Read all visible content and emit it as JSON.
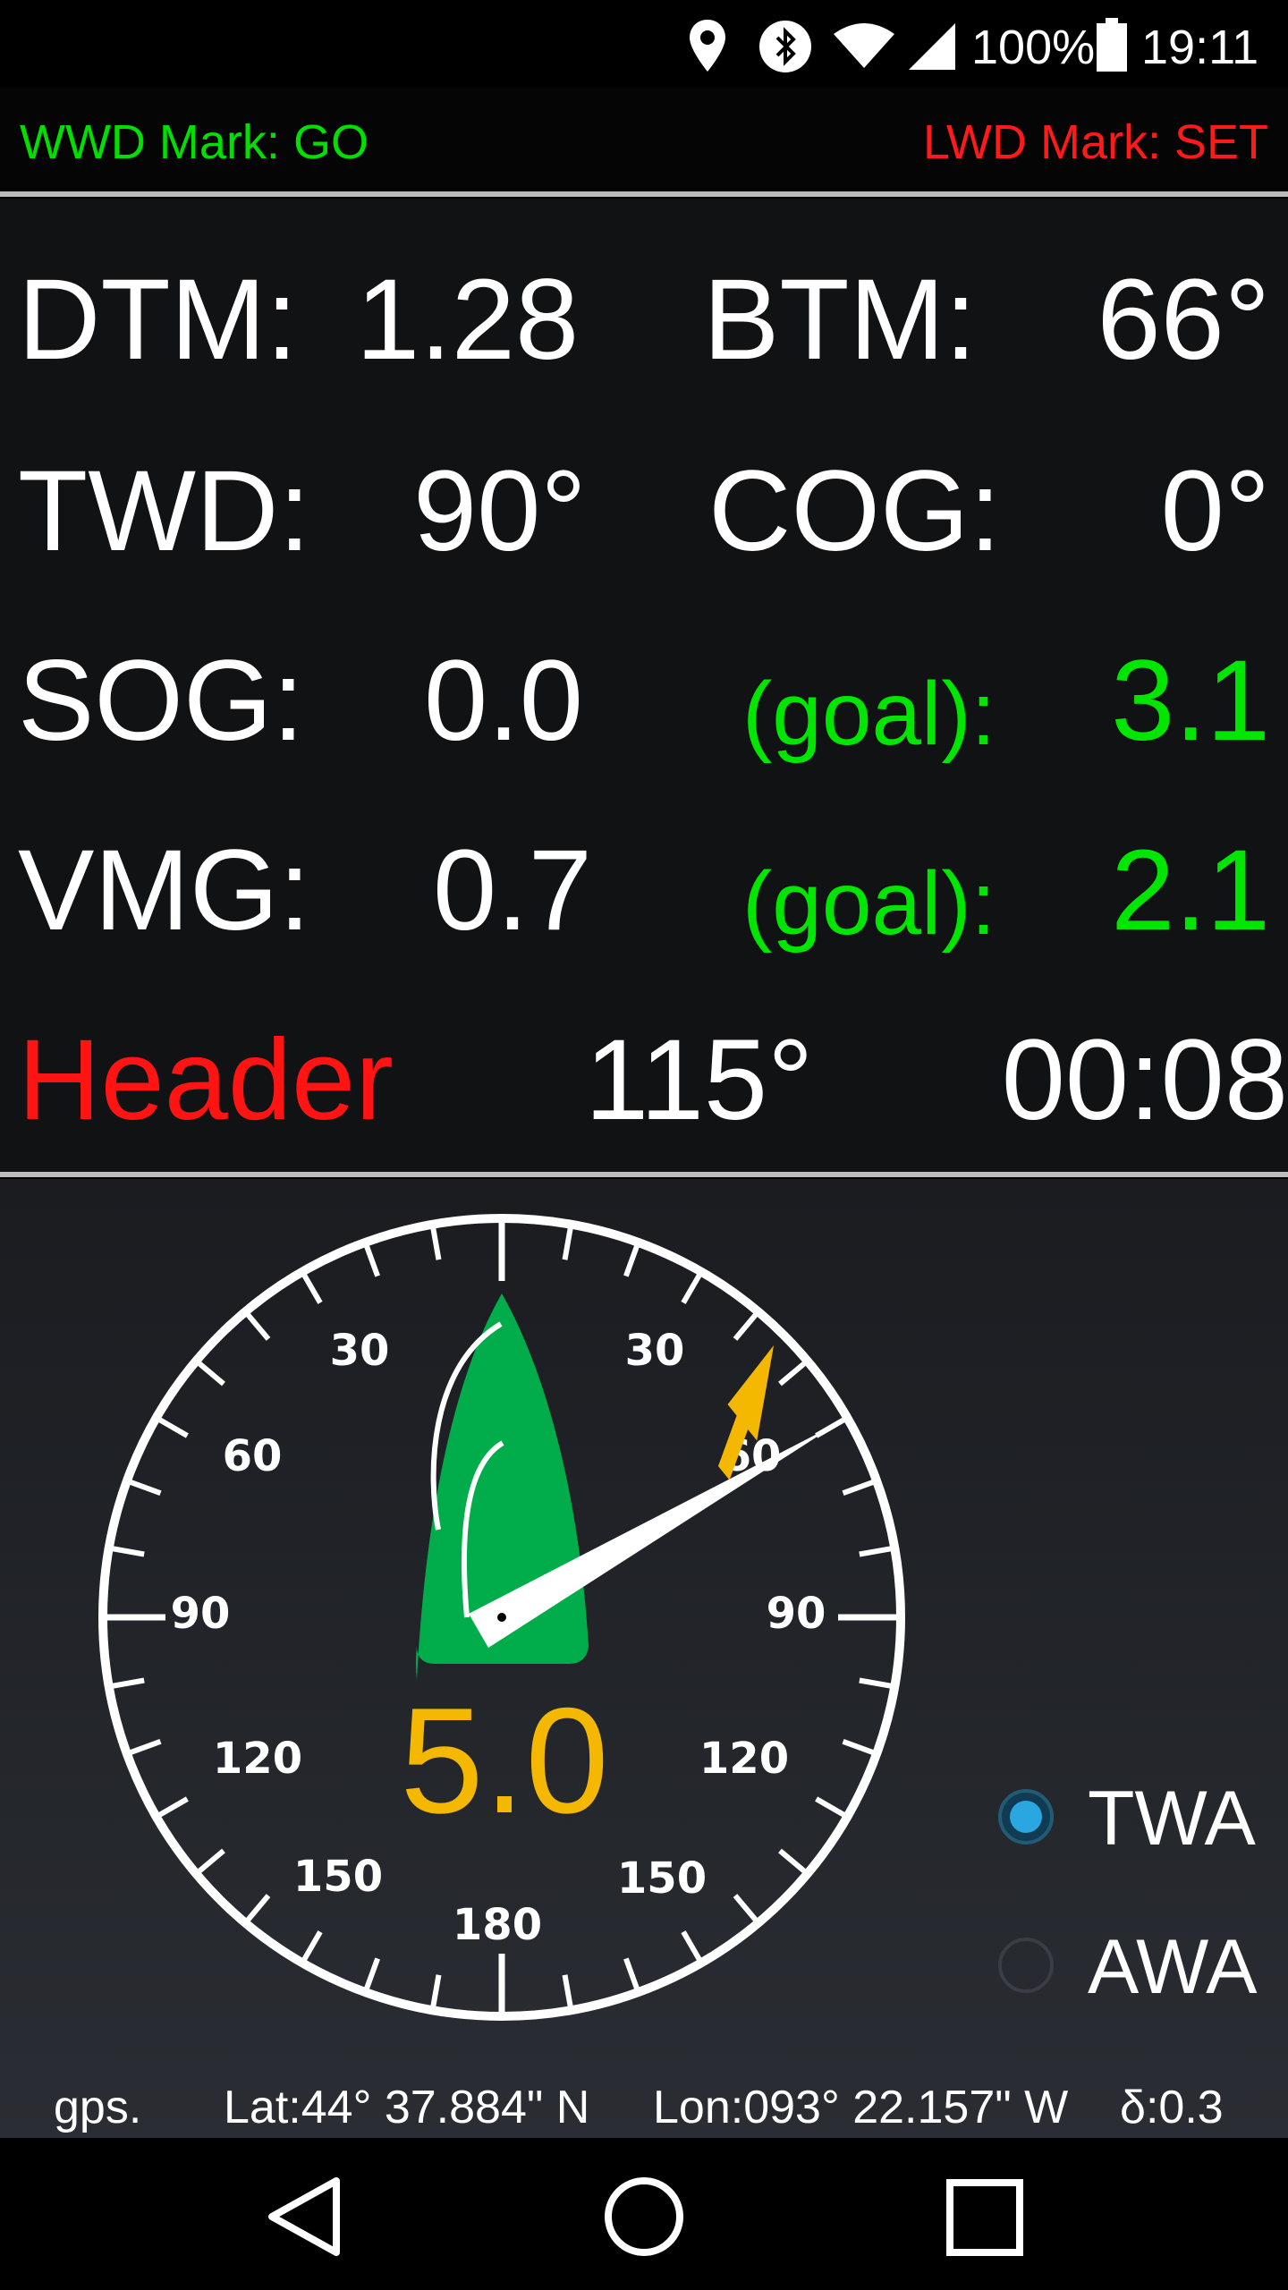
{
  "status_bar": {
    "battery": "100%",
    "time": "19:11",
    "icons": [
      "location-icon",
      "bluetooth-icon",
      "wifi-icon",
      "cell-signal-icon",
      "battery-icon"
    ]
  },
  "marks": {
    "wwd": "WWD Mark: GO",
    "lwd": "LWD Mark: SET",
    "wwd_color": "#00e000",
    "lwd_color": "#ff1a1a"
  },
  "data": {
    "dtm_label": "DTM:",
    "dtm_value": "1.28",
    "btm_label": "BTM:",
    "btm_value": "66°",
    "twd_label": "TWD:",
    "twd_value": "90°",
    "cog_label": "COG:",
    "cog_value": "0°",
    "sog_label": "SOG:",
    "sog_value": "0.0",
    "sog_goal_label": "(goal):",
    "sog_goal_value": "3.1",
    "vmg_label": "VMG:",
    "vmg_value": "0.7",
    "vmg_goal_label": "(goal):",
    "vmg_goal_value": "2.1",
    "status": "Header",
    "status_angle": "115°",
    "timer": "00:08"
  },
  "gauge": {
    "speed": "5.0",
    "tick_labels": {
      "30_left": "30",
      "30_right": "30",
      "60_left": "60",
      "60_right": "60",
      "90_left": "90",
      "90_right": "90",
      "120_left": "120",
      "120_right": "120",
      "150_left": "150",
      "150_right": "150",
      "180": "180"
    },
    "true_wind_angle_deg": 60,
    "apparent_wind_angle_deg": 45,
    "boat_color": "#00ad4a",
    "speed_color": "#f5b800"
  },
  "mode": {
    "options": [
      "TWA",
      "AWA"
    ],
    "selected": "TWA"
  },
  "gps": {
    "label": "gps.",
    "lat": "Lat:44° 37.884\" N",
    "lon": "Lon:093° 22.157\" W",
    "delta": "δ:0.3"
  }
}
